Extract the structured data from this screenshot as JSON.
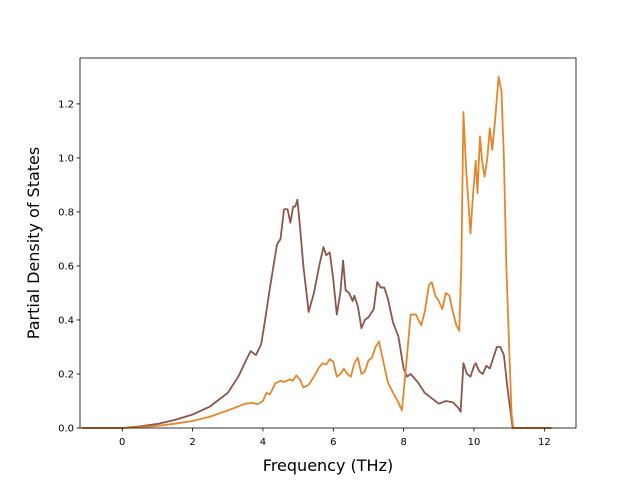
{
  "chart_data": {
    "type": "line",
    "title": "",
    "xlabel": "Frequency (THz)",
    "ylabel": "Partial Density of States",
    "xlim": [
      -1.2,
      12.9
    ],
    "ylim": [
      0.0,
      1.37
    ],
    "xticks": [
      0,
      2,
      4,
      6,
      8,
      10,
      12
    ],
    "yticks": [
      0.0,
      0.2,
      0.4,
      0.6,
      0.8,
      1.0,
      1.2
    ],
    "xtick_labels": [
      "0",
      "2",
      "4",
      "6",
      "8",
      "10",
      "12"
    ],
    "ytick_labels": [
      "0.0",
      "0.2",
      "0.4",
      "0.6",
      "0.8",
      "1.0",
      "1.2"
    ],
    "grid": false,
    "legend": "none",
    "series": [
      {
        "color": "#8c564b",
        "points": [
          [
            -1.15,
            0.0
          ],
          [
            0.0,
            0.0
          ],
          [
            0.5,
            0.006
          ],
          [
            1.0,
            0.015
          ],
          [
            1.5,
            0.03
          ],
          [
            2.0,
            0.05
          ],
          [
            2.5,
            0.08
          ],
          [
            3.0,
            0.13
          ],
          [
            3.3,
            0.19
          ],
          [
            3.5,
            0.245
          ],
          [
            3.65,
            0.285
          ],
          [
            3.8,
            0.27
          ],
          [
            3.95,
            0.31
          ],
          [
            4.05,
            0.39
          ],
          [
            4.2,
            0.52
          ],
          [
            4.3,
            0.6
          ],
          [
            4.4,
            0.68
          ],
          [
            4.5,
            0.7
          ],
          [
            4.6,
            0.81
          ],
          [
            4.7,
            0.81
          ],
          [
            4.78,
            0.76
          ],
          [
            4.86,
            0.82
          ],
          [
            4.92,
            0.82
          ],
          [
            4.98,
            0.845
          ],
          [
            5.05,
            0.75
          ],
          [
            5.15,
            0.6
          ],
          [
            5.3,
            0.43
          ],
          [
            5.45,
            0.5
          ],
          [
            5.6,
            0.6
          ],
          [
            5.72,
            0.67
          ],
          [
            5.8,
            0.64
          ],
          [
            5.9,
            0.65
          ],
          [
            6.0,
            0.55
          ],
          [
            6.1,
            0.42
          ],
          [
            6.2,
            0.5
          ],
          [
            6.28,
            0.62
          ],
          [
            6.35,
            0.51
          ],
          [
            6.45,
            0.5
          ],
          [
            6.55,
            0.47
          ],
          [
            6.6,
            0.49
          ],
          [
            6.7,
            0.45
          ],
          [
            6.8,
            0.37
          ],
          [
            6.9,
            0.4
          ],
          [
            7.0,
            0.41
          ],
          [
            7.15,
            0.44
          ],
          [
            7.25,
            0.54
          ],
          [
            7.35,
            0.52
          ],
          [
            7.45,
            0.52
          ],
          [
            7.55,
            0.48
          ],
          [
            7.7,
            0.39
          ],
          [
            7.85,
            0.34
          ],
          [
            8.0,
            0.22
          ],
          [
            8.1,
            0.19
          ],
          [
            8.2,
            0.2
          ],
          [
            8.4,
            0.17
          ],
          [
            8.6,
            0.13
          ],
          [
            8.8,
            0.11
          ],
          [
            9.0,
            0.09
          ],
          [
            9.2,
            0.1
          ],
          [
            9.4,
            0.095
          ],
          [
            9.55,
            0.075
          ],
          [
            9.62,
            0.06
          ],
          [
            9.7,
            0.24
          ],
          [
            9.8,
            0.2
          ],
          [
            9.9,
            0.19
          ],
          [
            10.0,
            0.23
          ],
          [
            10.05,
            0.24
          ],
          [
            10.15,
            0.21
          ],
          [
            10.25,
            0.2
          ],
          [
            10.35,
            0.23
          ],
          [
            10.45,
            0.22
          ],
          [
            10.55,
            0.26
          ],
          [
            10.65,
            0.3
          ],
          [
            10.75,
            0.3
          ],
          [
            10.85,
            0.27
          ],
          [
            10.95,
            0.15
          ],
          [
            11.05,
            0.05
          ],
          [
            11.1,
            0.0
          ],
          [
            12.2,
            0.0
          ]
        ]
      },
      {
        "color": "#e6862a",
        "points": [
          [
            -1.15,
            0.0
          ],
          [
            0.0,
            0.0
          ],
          [
            0.5,
            0.003
          ],
          [
            1.0,
            0.008
          ],
          [
            1.5,
            0.016
          ],
          [
            2.0,
            0.026
          ],
          [
            2.5,
            0.042
          ],
          [
            3.0,
            0.065
          ],
          [
            3.3,
            0.08
          ],
          [
            3.5,
            0.09
          ],
          [
            3.7,
            0.093
          ],
          [
            3.85,
            0.088
          ],
          [
            4.0,
            0.1
          ],
          [
            4.1,
            0.13
          ],
          [
            4.2,
            0.125
          ],
          [
            4.35,
            0.165
          ],
          [
            4.5,
            0.175
          ],
          [
            4.6,
            0.17
          ],
          [
            4.75,
            0.18
          ],
          [
            4.85,
            0.175
          ],
          [
            4.95,
            0.195
          ],
          [
            5.05,
            0.18
          ],
          [
            5.15,
            0.15
          ],
          [
            5.3,
            0.16
          ],
          [
            5.45,
            0.19
          ],
          [
            5.6,
            0.225
          ],
          [
            5.7,
            0.24
          ],
          [
            5.8,
            0.235
          ],
          [
            5.9,
            0.255
          ],
          [
            6.0,
            0.245
          ],
          [
            6.1,
            0.19
          ],
          [
            6.2,
            0.2
          ],
          [
            6.3,
            0.22
          ],
          [
            6.4,
            0.2
          ],
          [
            6.5,
            0.19
          ],
          [
            6.6,
            0.24
          ],
          [
            6.7,
            0.26
          ],
          [
            6.8,
            0.2
          ],
          [
            6.9,
            0.21
          ],
          [
            7.0,
            0.25
          ],
          [
            7.1,
            0.26
          ],
          [
            7.2,
            0.3
          ],
          [
            7.3,
            0.32
          ],
          [
            7.4,
            0.26
          ],
          [
            7.55,
            0.17
          ],
          [
            7.7,
            0.13
          ],
          [
            7.85,
            0.095
          ],
          [
            7.95,
            0.065
          ],
          [
            8.05,
            0.2
          ],
          [
            8.2,
            0.42
          ],
          [
            8.35,
            0.42
          ],
          [
            8.5,
            0.38
          ],
          [
            8.6,
            0.43
          ],
          [
            8.72,
            0.53
          ],
          [
            8.8,
            0.54
          ],
          [
            8.9,
            0.49
          ],
          [
            9.0,
            0.47
          ],
          [
            9.1,
            0.44
          ],
          [
            9.2,
            0.5
          ],
          [
            9.3,
            0.49
          ],
          [
            9.4,
            0.43
          ],
          [
            9.5,
            0.38
          ],
          [
            9.58,
            0.36
          ],
          [
            9.64,
            0.6
          ],
          [
            9.7,
            1.17
          ],
          [
            9.78,
            0.95
          ],
          [
            9.85,
            0.82
          ],
          [
            9.9,
            0.72
          ],
          [
            9.97,
            0.86
          ],
          [
            10.05,
            0.99
          ],
          [
            10.1,
            0.87
          ],
          [
            10.17,
            1.08
          ],
          [
            10.23,
            0.99
          ],
          [
            10.3,
            0.93
          ],
          [
            10.38,
            1.0
          ],
          [
            10.45,
            1.11
          ],
          [
            10.52,
            1.03
          ],
          [
            10.6,
            1.14
          ],
          [
            10.7,
            1.3
          ],
          [
            10.78,
            1.25
          ],
          [
            10.85,
            1.0
          ],
          [
            10.92,
            0.6
          ],
          [
            11.0,
            0.3
          ],
          [
            11.07,
            0.05
          ],
          [
            11.12,
            0.0
          ],
          [
            12.2,
            0.0
          ]
        ]
      }
    ]
  }
}
